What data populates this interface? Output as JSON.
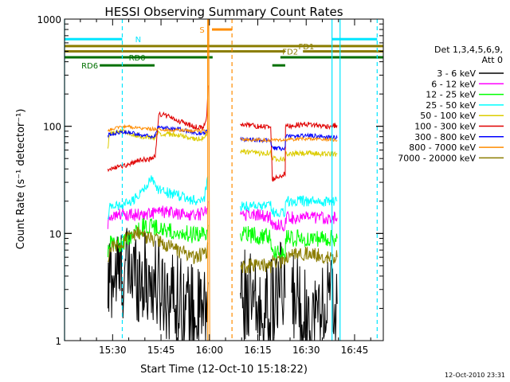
{
  "chart_data": {
    "type": "line",
    "title": "HESSI Observing Summary Count Rates",
    "xlabel": "Start Time (12-Oct-10 15:18:22)",
    "ylabel": "Count Rate (s⁻¹ detector⁻¹)",
    "y_scale": "log",
    "ylim": [
      1,
      1000
    ],
    "xlim_minutes": [
      15.1,
      113.9
    ],
    "x_ticks": [
      {
        "label": "15:30",
        "minute": 30
      },
      {
        "label": "15:45",
        "minute": 45
      },
      {
        "label": "16:00",
        "minute": 60
      },
      {
        "label": "16:15",
        "minute": 75
      },
      {
        "label": "16:30",
        "minute": 90
      },
      {
        "label": "16:45",
        "minute": 105
      }
    ],
    "y_ticks": [
      {
        "label": "1",
        "value": 1
      },
      {
        "label": "10",
        "value": 10
      },
      {
        "label": "100",
        "value": 100
      },
      {
        "label": "1000",
        "value": 1000
      }
    ],
    "legend": {
      "position": "right",
      "header": [
        "Det 1,3,4,5,6,9,",
        "Att 0"
      ],
      "entries": [
        {
          "label": "3 - 6 keV",
          "color": "#000000"
        },
        {
          "label": "6 - 12 keV",
          "color": "#ff00ff"
        },
        {
          "label": "12 - 25 keV",
          "color": "#00ff00"
        },
        {
          "label": "25 - 50 keV",
          "color": "#00ffff"
        },
        {
          "label": "50 - 100 keV",
          "color": "#dccc00"
        },
        {
          "label": "100 - 300 keV",
          "color": "#e00000"
        },
        {
          "label": "300 - 800 keV",
          "color": "#0000ff"
        },
        {
          "label": "800 - 7000 keV",
          "color": "#ff8c00"
        },
        {
          "label": "7000 - 20000 keV",
          "color": "#8b7d00"
        }
      ]
    },
    "intervals": [
      {
        "label": "N",
        "color": "#00e5ff",
        "segments": [
          [
            15.1,
            33.0
          ],
          [
            98.0,
            112.0
          ]
        ],
        "level": 650
      },
      {
        "label": "S",
        "color": "#ff8c00",
        "segments": [
          [
            60.8,
            67.0
          ]
        ],
        "level": 800
      },
      {
        "label": "FD1",
        "color": "#8b7d00",
        "segments": [
          [
            15.1,
            113.9
          ]
        ],
        "level": 560
      },
      {
        "label": "FD2",
        "color": "#8b7d00",
        "segments": [
          [
            15.1,
            83.5
          ],
          [
            89.0,
            113.9
          ]
        ],
        "level": 500
      },
      {
        "label": "RD0",
        "color": "#007000",
        "segments": [
          [
            15.1,
            61.0
          ],
          [
            82.0,
            113.9
          ]
        ],
        "level": 440
      },
      {
        "label": "RD6",
        "color": "#007000",
        "segments": [
          [
            26.0,
            43.0
          ],
          [
            79.5,
            83.5
          ]
        ],
        "level": 370
      }
    ],
    "vlines": [
      {
        "minute": 15.1,
        "color": "#00e5ff",
        "style": "solid"
      },
      {
        "minute": 33.0,
        "color": "#00e5ff",
        "style": "dashed"
      },
      {
        "minute": 59.5,
        "color": "#ff8c00",
        "style": "solid"
      },
      {
        "minute": 67.0,
        "color": "#ff8c00",
        "style": "dashed"
      },
      {
        "minute": 98.0,
        "color": "#00e5ff",
        "style": "solid"
      },
      {
        "minute": 100.5,
        "color": "#00e5ff",
        "style": "solid"
      },
      {
        "minute": 112.0,
        "color": "#00e5ff",
        "style": "dashed"
      }
    ],
    "series": [
      {
        "name": "3 - 6 keV",
        "color": "#000000",
        "noise": 0.45,
        "points": [
          [
            28.5,
            2.0
          ],
          [
            29,
            4.0
          ],
          [
            36,
            4.5
          ],
          [
            40,
            3.8
          ],
          [
            46,
            3.0
          ],
          [
            52,
            2.2
          ],
          [
            56,
            1.7
          ],
          [
            59,
            1.8
          ],
          [
            59.6,
            3.5
          ],
          [
            null,
            null
          ],
          [
            69.6,
            2.8
          ],
          [
            72,
            2.5
          ],
          [
            76,
            1.6
          ],
          [
            80,
            2.2
          ],
          [
            82,
            3.0
          ],
          [
            83.5,
            2.5
          ],
          [
            null,
            null
          ],
          [
            85.5,
            2.8
          ],
          [
            88,
            2.2
          ],
          [
            91,
            1.5
          ],
          [
            94,
            1.8
          ],
          [
            97,
            2.5
          ],
          [
            99.6,
            2.2
          ]
        ]
      },
      {
        "name": "6 - 12 keV",
        "color": "#ff00ff",
        "noise": 0.06,
        "points": [
          [
            28.5,
            11
          ],
          [
            29,
            15
          ],
          [
            36,
            15
          ],
          [
            40,
            15
          ],
          [
            45,
            16
          ],
          [
            52,
            15
          ],
          [
            57,
            15
          ],
          [
            59,
            17
          ],
          [
            59.6,
            20
          ],
          [
            null,
            null
          ],
          [
            69.6,
            15
          ],
          [
            75,
            15
          ],
          [
            79,
            14
          ],
          [
            79.5,
            12
          ],
          [
            83.5,
            12
          ],
          [
            83.6,
            14
          ],
          [
            null,
            null
          ],
          [
            83.6,
            14
          ],
          [
            90,
            14
          ],
          [
            96,
            14
          ],
          [
            99.6,
            14
          ]
        ]
      },
      {
        "name": "12 - 25 keV",
        "color": "#00ff00",
        "noise": 0.08,
        "points": [
          [
            28.5,
            6
          ],
          [
            29,
            8
          ],
          [
            33,
            8
          ],
          [
            40,
            12
          ],
          [
            45,
            11
          ],
          [
            52,
            10
          ],
          [
            57,
            9.5
          ],
          [
            59,
            10.5
          ],
          [
            59.6,
            12
          ],
          [
            null,
            null
          ],
          [
            69.6,
            10
          ],
          [
            75,
            9.5
          ],
          [
            79,
            9.5
          ],
          [
            79.5,
            6.5
          ],
          [
            83.5,
            6.5
          ],
          [
            83.6,
            9
          ],
          [
            null,
            null
          ],
          [
            83.6,
            9
          ],
          [
            90,
            9
          ],
          [
            99.6,
            9
          ]
        ]
      },
      {
        "name": "25 - 50 keV",
        "color": "#00ffff",
        "noise": 0.05,
        "points": [
          [
            28.5,
            14
          ],
          [
            29,
            18
          ],
          [
            33,
            18
          ],
          [
            38,
            22
          ],
          [
            42,
            32
          ],
          [
            44,
            26
          ],
          [
            47,
            24
          ],
          [
            52,
            22
          ],
          [
            56,
            20
          ],
          [
            58.5,
            22
          ],
          [
            59.6,
            34
          ],
          [
            null,
            null
          ],
          [
            69.6,
            18
          ],
          [
            75,
            18
          ],
          [
            79,
            18
          ],
          [
            79.5,
            16
          ],
          [
            83.5,
            16
          ],
          [
            83.6,
            20
          ],
          [
            null,
            null
          ],
          [
            83.6,
            20
          ],
          [
            90,
            20
          ],
          [
            99.6,
            20
          ]
        ]
      },
      {
        "name": "50 - 100 keV",
        "color": "#dccc00",
        "noise": 0.025,
        "points": [
          [
            28.5,
            62
          ],
          [
            29,
            85
          ],
          [
            33,
            90
          ],
          [
            40,
            80
          ],
          [
            43,
            78
          ],
          [
            44,
            86
          ],
          [
            48,
            84
          ],
          [
            52,
            80
          ],
          [
            56,
            76
          ],
          [
            58.5,
            78
          ],
          [
            59.6,
            90
          ],
          [
            null,
            null
          ],
          [
            69.6,
            58
          ],
          [
            75,
            56
          ],
          [
            79,
            57
          ],
          [
            79.5,
            50
          ],
          [
            83.5,
            50
          ],
          [
            83.6,
            55
          ],
          [
            null,
            null
          ],
          [
            83.6,
            55
          ],
          [
            90,
            56
          ],
          [
            99.6,
            55
          ]
        ]
      },
      {
        "name": "100 - 300 keV",
        "color": "#e00000",
        "noise": 0.025,
        "points": [
          [
            28.5,
            40
          ],
          [
            33,
            42
          ],
          [
            38,
            48
          ],
          [
            42,
            50
          ],
          [
            43.2,
            52
          ],
          [
            44.3,
            130
          ],
          [
            47,
            125
          ],
          [
            51,
            110
          ],
          [
            55,
            100
          ],
          [
            58,
            95
          ],
          [
            59.2,
            120
          ],
          [
            59.6,
            240
          ],
          [
            null,
            null
          ],
          [
            69.6,
            105
          ],
          [
            75,
            100
          ],
          [
            79,
            98
          ],
          [
            79.5,
            32
          ],
          [
            83.5,
            36
          ],
          [
            83.6,
            100
          ],
          [
            null,
            null
          ],
          [
            83.6,
            100
          ],
          [
            90,
            105
          ],
          [
            96,
            100
          ],
          [
            99.6,
            102
          ]
        ]
      },
      {
        "name": "300 - 800 keV",
        "color": "#0000ff",
        "noise": 0.02,
        "points": [
          [
            28.5,
            82
          ],
          [
            30,
            86
          ],
          [
            34,
            88
          ],
          [
            38,
            84
          ],
          [
            43,
            80
          ],
          [
            44,
            98
          ],
          [
            48,
            96
          ],
          [
            52,
            92
          ],
          [
            56,
            86
          ],
          [
            58.5,
            86
          ],
          [
            59.6,
            95
          ],
          [
            null,
            null
          ],
          [
            69.6,
            76
          ],
          [
            75,
            74
          ],
          [
            79,
            74
          ],
          [
            79.5,
            62
          ],
          [
            83.5,
            62
          ],
          [
            83.6,
            80
          ],
          [
            null,
            null
          ],
          [
            83.6,
            80
          ],
          [
            90,
            82
          ],
          [
            96,
            80
          ],
          [
            99.6,
            78
          ]
        ]
      },
      {
        "name": "800 - 7000 keV",
        "color": "#ff8c00",
        "noise": 0.015,
        "points": [
          [
            28.5,
            92
          ],
          [
            33,
            100
          ],
          [
            40,
            95
          ],
          [
            50,
            92
          ],
          [
            59.4,
            90
          ],
          [
            59.5,
            1000
          ],
          [
            null,
            null
          ],
          [
            59.8,
            1000
          ],
          [
            60.1,
            1
          ],
          [
            null,
            null
          ],
          [
            69.6,
            75
          ],
          [
            80,
            74
          ],
          [
            88,
            76
          ],
          [
            96,
            76
          ],
          [
            99.6,
            74
          ]
        ]
      },
      {
        "name": "7000 - 20000 keV",
        "color": "#8b7d00",
        "noise": 0.07,
        "points": [
          [
            28.5,
            5.5
          ],
          [
            29,
            7
          ],
          [
            33,
            8.5
          ],
          [
            38,
            10
          ],
          [
            44,
            8.5
          ],
          [
            50,
            7
          ],
          [
            55,
            6
          ],
          [
            59,
            6.5
          ],
          [
            59.6,
            8
          ],
          [
            null,
            null
          ],
          [
            69.6,
            5
          ],
          [
            75,
            5
          ],
          [
            79,
            5
          ],
          [
            79.5,
            5.5
          ],
          [
            83.5,
            5.5
          ],
          [
            83.6,
            6
          ],
          [
            null,
            null
          ],
          [
            83.6,
            6
          ],
          [
            90,
            6.5
          ],
          [
            96,
            6
          ],
          [
            99.6,
            6
          ]
        ]
      }
    ]
  },
  "footer": {
    "timestamp": "12-Oct-2010 23:31"
  }
}
